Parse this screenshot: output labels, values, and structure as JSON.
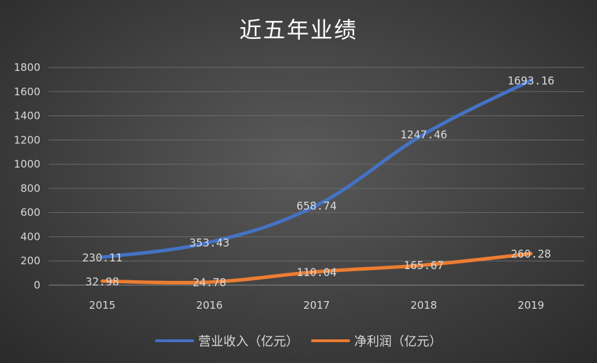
{
  "chart_data": {
    "type": "line",
    "title": "近五年业绩",
    "categories": [
      "2015",
      "2016",
      "2017",
      "2018",
      "2019"
    ],
    "ylim": [
      0,
      1800
    ],
    "yticks": [
      0,
      200,
      400,
      600,
      800,
      1000,
      1200,
      1400,
      1600,
      1800
    ],
    "grid": true,
    "legend_position": "bottom",
    "series": [
      {
        "name": "营业收入（亿元）",
        "color": "#4472c4",
        "values": [
          230.11,
          353.43,
          658.74,
          1247.46,
          1693.16
        ],
        "labels": [
          "230.11",
          "353.43",
          "658.74",
          "1247.46",
          "1693.16"
        ]
      },
      {
        "name": "净利润（亿元）",
        "color": "#ed7d31",
        "values": [
          32.98,
          24.78,
          110.04,
          165.67,
          260.28
        ],
        "labels": [
          "32.98",
          "24.78",
          "110.04",
          "165.67",
          "260.28"
        ]
      }
    ]
  }
}
